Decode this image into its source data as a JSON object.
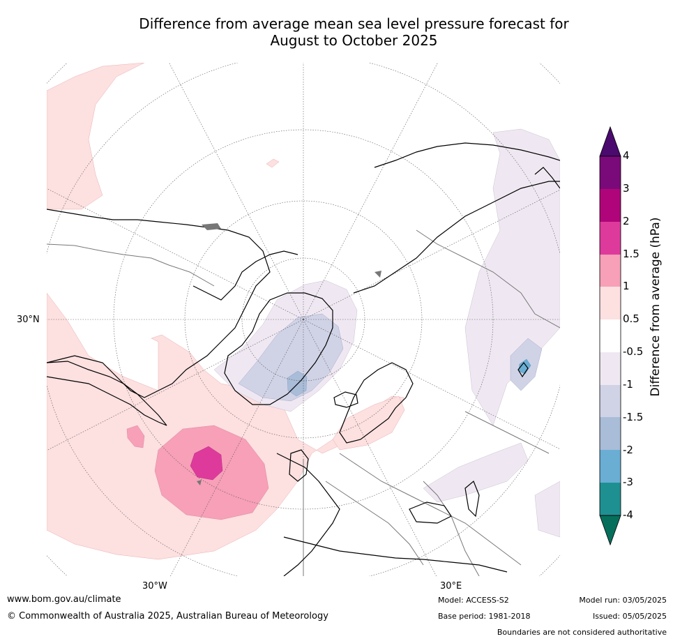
{
  "title": {
    "line1": "Difference from average mean sea level pressure forecast for",
    "line2": "August to October 2025"
  },
  "map": {
    "projection": "north-polar-stereographic",
    "lat_label": "30°N",
    "lon_labels": {
      "left": "30°W",
      "right": "30°E"
    }
  },
  "colorbar": {
    "label": "Difference from average (hPa)",
    "ticks": [
      "4",
      "3",
      "2",
      "1.5",
      "1",
      "0.5",
      "-0.5",
      "-1",
      "-1.5",
      "-2",
      "-3",
      "-4"
    ],
    "colors": {
      "above_4": "#4b0a6e",
      "3_to_4": "#7a0a7a",
      "2_to_3": "#b0057a",
      "1.5_to_2": "#de3a9c",
      "1_to_1.5": "#f7a0b8",
      "0.5_to_1": "#fde0e0",
      "-0.5_to_0.5": "#ffffff",
      "-1_to_-0.5": "#efe8f2",
      "-1.5_to_-1": "#d0d2e6",
      "-2_to_-1.5": "#a9bcd8",
      "-3_to_-2": "#6aaed4",
      "-4_to_-3": "#1f9092",
      "below_-4": "#066f5c"
    }
  },
  "footer": {
    "website": "www.bom.gov.au/climate",
    "copyright": "© Commonwealth of Australia 2025, Australian Bureau of Meteorology",
    "model": "Model: ACCESS-S2",
    "base_period": "Base period: 1981-2018",
    "model_run": "Model run: 03/05/2025",
    "issued": "Issued: 05/05/2025",
    "disclaimer": "Boundaries are not considered authoritative"
  }
}
